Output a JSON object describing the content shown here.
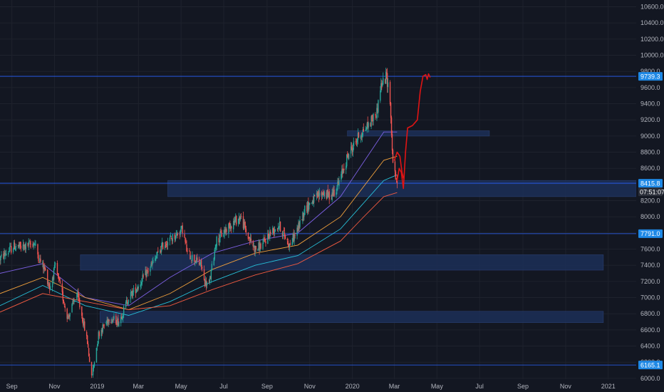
{
  "colors": {
    "background": "#131722",
    "grid": "#1e222d",
    "up": "#26a69a",
    "down": "#ef5350",
    "zone": "#1c2d54",
    "hline": "#2962ff",
    "drawing": "#e01414",
    "ma_purple": "#7b5fe0",
    "ma_orange": "#f0a03c",
    "ma_teal": "#27c0d9",
    "ma_red": "#f05a40",
    "badge": "#1e88e5",
    "countdown_bg": "#2a2e39"
  },
  "chart_data": {
    "type": "candlestick",
    "y_axis": {
      "ticks": [
        "10600.0",
        "10400.0",
        "10200.0",
        "10000.0",
        "9800.0",
        "9600.0",
        "9400.0",
        "9200.0",
        "9000.0",
        "8800.0",
        "8600.0",
        "8400.0",
        "8200.0",
        "8000.0",
        "7800.0",
        "7600.0",
        "7400.0",
        "7200.0",
        "7000.0",
        "6800.0",
        "6600.0",
        "6400.0",
        "6200.0",
        "6000.0"
      ],
      "range": [
        5990,
        10640
      ]
    },
    "x_axis": {
      "ticks": [
        "Sep",
        "Nov",
        "2019",
        "Mar",
        "May",
        "Jul",
        "Sep",
        "Nov",
        "2020",
        "Mar",
        "May",
        "Jul",
        "Sep",
        "Nov",
        "2021"
      ],
      "range": [
        "2018-08-15",
        "2021-02-10"
      ]
    },
    "price_path": [
      [
        "2018-08-15",
        7480
      ],
      [
        "2018-08-25",
        7560
      ],
      [
        "2018-09-05",
        7640
      ],
      [
        "2018-09-15",
        7620
      ],
      [
        "2018-09-25",
        7650
      ],
      [
        "2018-10-03",
        7680
      ],
      [
        "2018-10-10",
        7480
      ],
      [
        "2018-10-18",
        7350
      ],
      [
        "2018-10-25",
        7120
      ],
      [
        "2018-11-02",
        7380
      ],
      [
        "2018-11-10",
        7100
      ],
      [
        "2018-11-20",
        6750
      ],
      [
        "2018-12-03",
        7050
      ],
      [
        "2018-12-12",
        6700
      ],
      [
        "2018-12-18",
        6450
      ],
      [
        "2018-12-24",
        6000
      ],
      [
        "2019-01-03",
        6550
      ],
      [
        "2019-01-18",
        6750
      ],
      [
        "2019-02-01",
        6700
      ],
      [
        "2019-02-15",
        7000
      ],
      [
        "2019-03-01",
        7150
      ],
      [
        "2019-03-20",
        7400
      ],
      [
        "2019-04-05",
        7650
      ],
      [
        "2019-04-20",
        7750
      ],
      [
        "2019-05-03",
        7850
      ],
      [
        "2019-05-10",
        7550
      ],
      [
        "2019-05-30",
        7400
      ],
      [
        "2019-06-03",
        7200
      ],
      [
        "2019-06-10",
        7150
      ],
      [
        "2019-06-20",
        7700
      ],
      [
        "2019-07-10",
        7900
      ],
      [
        "2019-07-25",
        8000
      ],
      [
        "2019-08-05",
        7750
      ],
      [
        "2019-08-15",
        7600
      ],
      [
        "2019-08-25",
        7650
      ],
      [
        "2019-09-05",
        7800
      ],
      [
        "2019-09-18",
        7900
      ],
      [
        "2019-10-03",
        7650
      ],
      [
        "2019-10-15",
        7850
      ],
      [
        "2019-10-25",
        8100
      ],
      [
        "2019-11-05",
        8200
      ],
      [
        "2019-11-20",
        8300
      ],
      [
        "2019-11-30",
        8250
      ],
      [
        "2019-12-12",
        8400
      ],
      [
        "2019-12-25",
        8750
      ],
      [
        "2020-01-10",
        9000
      ],
      [
        "2020-01-25",
        9150
      ],
      [
        "2020-02-05",
        9300
      ],
      [
        "2020-02-10",
        9600
      ],
      [
        "2020-02-19",
        9740
      ],
      [
        "2020-02-24",
        9450
      ],
      [
        "2020-02-27",
        8800
      ],
      [
        "2020-03-02",
        8500
      ],
      [
        "2020-03-05",
        8400
      ]
    ],
    "moving_averages": [
      {
        "color": "#7b5fe0",
        "points": [
          [
            "2018-08-15",
            7300
          ],
          [
            "2018-10-15",
            7420
          ],
          [
            "2018-12-15",
            7000
          ],
          [
            "2019-02-15",
            6900
          ],
          [
            "2019-04-15",
            7250
          ],
          [
            "2019-06-15",
            7550
          ],
          [
            "2019-08-15",
            7700
          ],
          [
            "2019-10-15",
            7800
          ],
          [
            "2019-12-15",
            8250
          ],
          [
            "2020-01-15",
            8650
          ],
          [
            "2020-02-15",
            9050
          ],
          [
            "2020-03-05",
            9050
          ]
        ]
      },
      {
        "color": "#f0a03c",
        "points": [
          [
            "2018-08-15",
            7050
          ],
          [
            "2018-10-15",
            7250
          ],
          [
            "2018-12-15",
            7000
          ],
          [
            "2019-02-15",
            6850
          ],
          [
            "2019-04-15",
            7050
          ],
          [
            "2019-06-15",
            7350
          ],
          [
            "2019-08-15",
            7550
          ],
          [
            "2019-10-15",
            7650
          ],
          [
            "2019-12-15",
            8000
          ],
          [
            "2020-01-15",
            8350
          ],
          [
            "2020-02-15",
            8700
          ],
          [
            "2020-03-05",
            8750
          ]
        ]
      },
      {
        "color": "#27c0d9",
        "points": [
          [
            "2018-08-15",
            6900
          ],
          [
            "2018-10-15",
            7150
          ],
          [
            "2018-12-15",
            6900
          ],
          [
            "2019-02-15",
            6780
          ],
          [
            "2019-04-15",
            6950
          ],
          [
            "2019-06-15",
            7200
          ],
          [
            "2019-08-15",
            7400
          ],
          [
            "2019-10-15",
            7520
          ],
          [
            "2019-12-15",
            7850
          ],
          [
            "2020-01-15",
            8150
          ],
          [
            "2020-02-15",
            8450
          ],
          [
            "2020-03-05",
            8520
          ]
        ]
      },
      {
        "color": "#f05a40",
        "points": [
          [
            "2018-08-15",
            6820
          ],
          [
            "2018-10-15",
            7050
          ],
          [
            "2018-12-15",
            6950
          ],
          [
            "2019-02-15",
            6850
          ],
          [
            "2019-04-15",
            6900
          ],
          [
            "2019-06-15",
            7100
          ],
          [
            "2019-08-15",
            7280
          ],
          [
            "2019-10-15",
            7420
          ],
          [
            "2019-12-15",
            7700
          ],
          [
            "2020-01-15",
            7980
          ],
          [
            "2020-02-15",
            8250
          ],
          [
            "2020-03-05",
            8300
          ]
        ]
      }
    ],
    "zones": [
      {
        "from": "2019-04-12",
        "to": "2021-02-10",
        "y1": 8250,
        "y2": 8450
      },
      {
        "from": "2019-12-25",
        "to": "2020-07-15",
        "y1": 9000,
        "y2": 9065
      },
      {
        "from": "2018-12-08",
        "to": "2020-12-25",
        "y1": 7340,
        "y2": 7530
      },
      {
        "from": "2019-01-05",
        "to": "2020-12-25",
        "y1": 6690,
        "y2": 6830
      }
    ],
    "horizontal_lines": [
      {
        "value": 9739.3,
        "label": "9739.3"
      },
      {
        "value": 8415.8,
        "label": "8415.8"
      },
      {
        "value": 7791.0,
        "label": "7791.0"
      },
      {
        "value": 6165.1,
        "label": "6165.1"
      }
    ],
    "countdown": "07:51:07",
    "annotation_path": [
      [
        "2020-03-05",
        8450
      ],
      [
        "2020-03-08",
        8600
      ],
      [
        "2020-03-11",
        8550
      ],
      [
        "2020-03-14",
        8350
      ],
      [
        "2020-03-17",
        8800
      ],
      [
        "2020-03-20",
        9100
      ],
      [
        "2020-03-27",
        9130
      ],
      [
        "2020-04-03",
        9200
      ],
      [
        "2020-04-07",
        9550
      ],
      [
        "2020-04-11",
        9740
      ],
      [
        "2020-04-15",
        9760
      ],
      [
        "2020-04-17",
        9700
      ],
      [
        "2020-04-19",
        9770
      ],
      [
        "2020-04-21",
        9730
      ]
    ],
    "annotation_dip": [
      [
        "2020-03-01",
        8700
      ],
      [
        "2020-03-05",
        8800
      ],
      [
        "2020-03-09",
        8750
      ],
      [
        "2020-03-12",
        8550
      ],
      [
        "2020-03-14",
        8480
      ]
    ]
  }
}
